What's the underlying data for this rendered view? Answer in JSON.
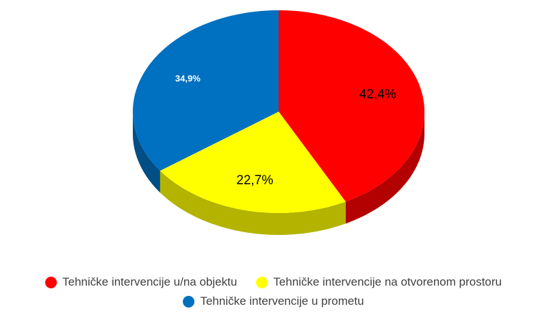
{
  "chart_data": {
    "type": "pie3d",
    "categories": [
      "Tehničke intervencije u/na objektu",
      "Tehničke intervencije na otvorenom prostoru",
      "Tehničke intervencije u prometu"
    ],
    "values": [
      42.4,
      22.7,
      34.9
    ],
    "value_labels": [
      "42,4%",
      "22,7%",
      "34,9%"
    ],
    "colors": [
      "#ff0000",
      "#ffff00",
      "#0070c0"
    ],
    "label_colors": [
      "#000000",
      "#000000",
      "#ffffff"
    ],
    "legend": "bottom"
  }
}
